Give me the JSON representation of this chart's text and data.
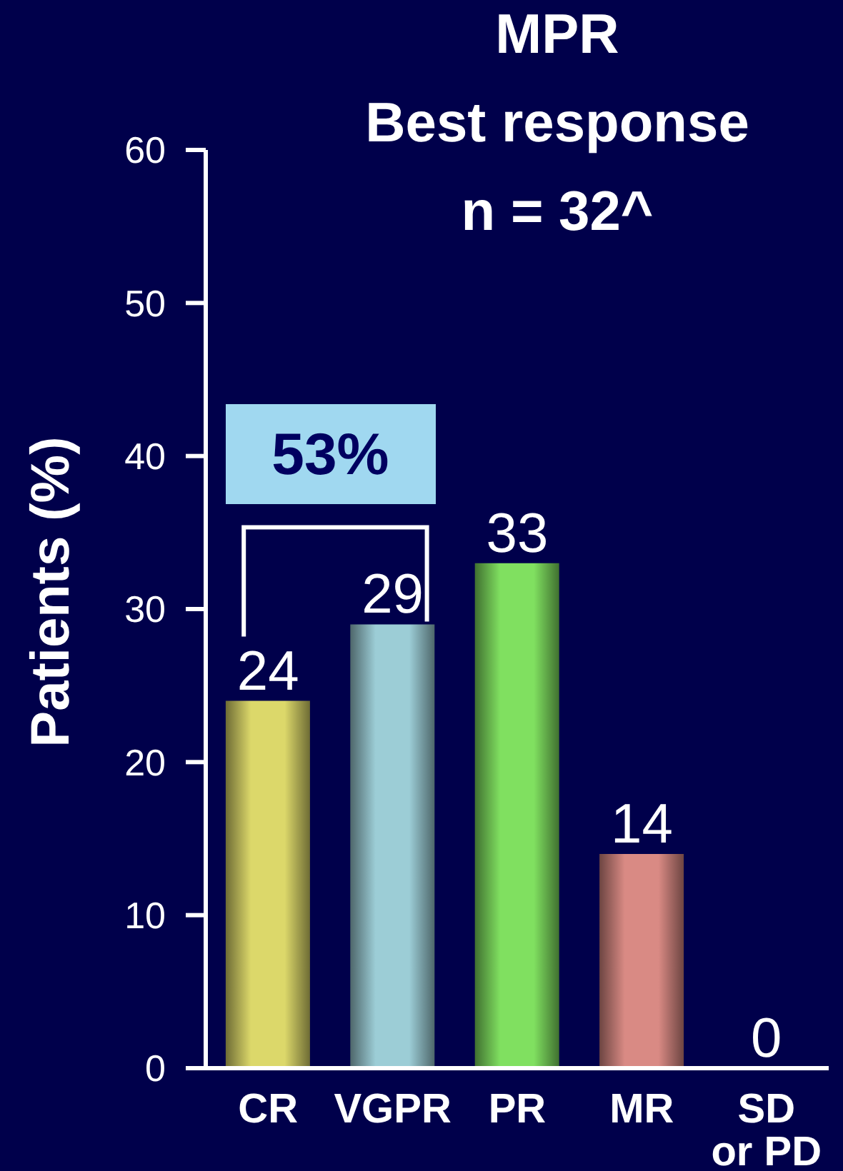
{
  "chart_data": {
    "type": "bar",
    "title": "MPR\nBest response\nn = 32^",
    "ylabel": "Patients (%)",
    "categories": [
      "CR",
      "VGPR",
      "PR",
      "MR",
      "SD\nor PD"
    ],
    "values": [
      24,
      29,
      33,
      14,
      0
    ],
    "colors": [
      "#dcd86a",
      "#9ccdd6",
      "#80e060",
      "#d98a84",
      null
    ],
    "ylim": [
      0,
      60
    ],
    "yticks": [
      0,
      10,
      20,
      30,
      40,
      50,
      60
    ],
    "data_labels": true,
    "annotations": [
      "53%"
    ]
  }
}
